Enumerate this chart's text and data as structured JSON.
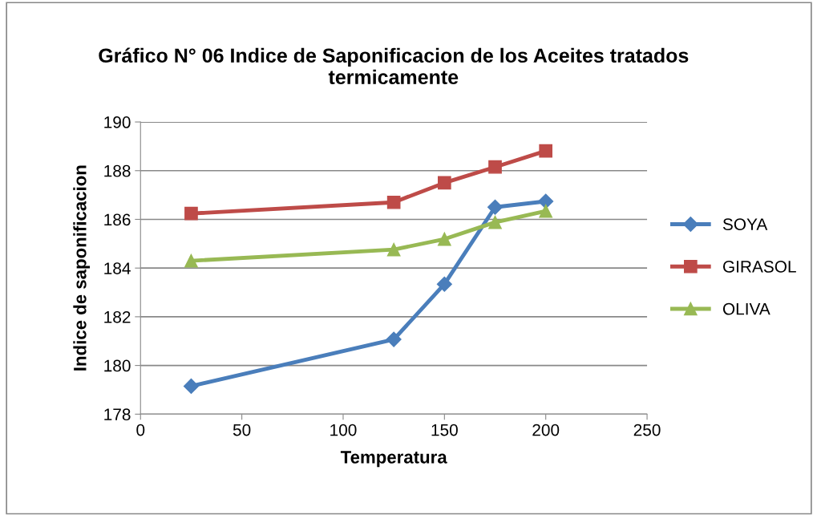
{
  "chart_data": {
    "type": "line",
    "title": "Gráfico N° 06 Indice de Saponificacion de los Aceites tratados termicamente",
    "xlabel": "Temperatura",
    "ylabel": "Indice de saponificacion",
    "x": [
      25,
      125,
      150,
      175,
      200
    ],
    "series": [
      {
        "name": "SOYA",
        "color": "#4a7ebb",
        "marker": "diamond",
        "values": [
          179.15,
          181.07,
          183.34,
          186.5,
          186.74
        ]
      },
      {
        "name": "GIRASOL",
        "color": "#be4b48",
        "marker": "square",
        "values": [
          186.24,
          186.7,
          187.5,
          188.15,
          188.81
        ]
      },
      {
        "name": "OLIVA",
        "color": "#98b954",
        "marker": "triangle",
        "values": [
          184.3,
          184.76,
          185.19,
          185.88,
          186.34
        ]
      }
    ],
    "xlim": [
      0,
      250
    ],
    "xticks": [
      0,
      50,
      100,
      150,
      200,
      250
    ],
    "ylim": [
      178,
      190
    ],
    "yticks": [
      178,
      180,
      182,
      184,
      186,
      188,
      190
    ],
    "grid": "y",
    "legend": "right",
    "line_style": "solid"
  }
}
